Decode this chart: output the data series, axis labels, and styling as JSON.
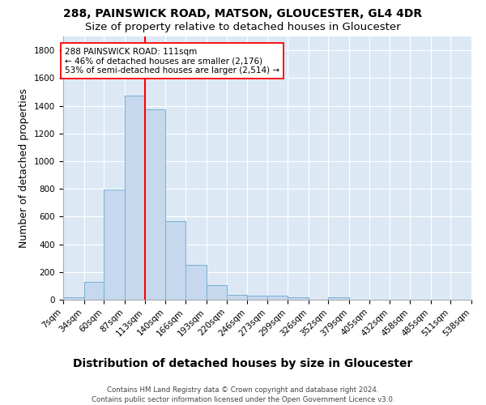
{
  "title1": "288, PAINSWICK ROAD, MATSON, GLOUCESTER, GL4 4DR",
  "title2": "Size of property relative to detached houses in Gloucester",
  "xlabel": "Distribution of detached houses by size in Gloucester",
  "ylabel": "Number of detached properties",
  "bin_edges": [
    7,
    34,
    60,
    87,
    113,
    140,
    166,
    193,
    220,
    246,
    273,
    299,
    326,
    352,
    379,
    405,
    432,
    458,
    485,
    511,
    538
  ],
  "bar_heights": [
    15,
    130,
    795,
    1475,
    1375,
    570,
    250,
    108,
    35,
    30,
    28,
    15,
    0,
    20,
    0,
    0,
    0,
    0,
    0,
    0
  ],
  "bar_color": "#c5d8ed",
  "bar_edge_color": "#7aafd4",
  "property_line_x": 113,
  "property_line_color": "red",
  "annotation_text": "288 PAINSWICK ROAD: 111sqm\n← 46% of detached houses are smaller (2,176)\n53% of semi-detached houses are larger (2,514) →",
  "annotation_box_color": "white",
  "annotation_box_edge_color": "red",
  "ylim": [
    0,
    1900
  ],
  "yticks": [
    0,
    200,
    400,
    600,
    800,
    1000,
    1200,
    1400,
    1600,
    1800
  ],
  "footnote1": "Contains HM Land Registry data © Crown copyright and database right 2024.",
  "footnote2": "Contains public sector information licensed under the Open Government Licence v3.0.",
  "fig_background_color": "#ffffff",
  "plot_bg_color": "#dce9f5",
  "grid_color": "white",
  "title_fontsize": 10,
  "subtitle_fontsize": 9.5,
  "axis_label_fontsize": 9,
  "tick_fontsize": 7.5,
  "annot_fontsize": 7.5
}
